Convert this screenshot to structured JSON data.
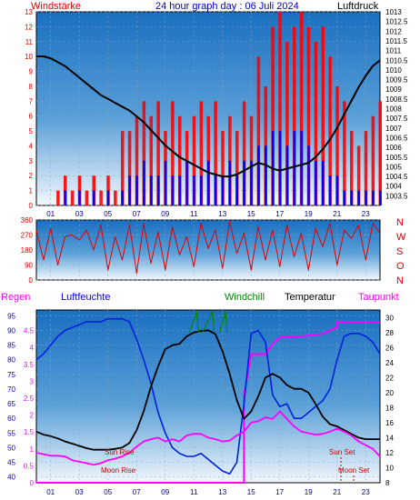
{
  "header": {
    "left": "Windstärke",
    "center": "24 hour graph day : 06 Juli 2024",
    "right": "Luftdruck"
  },
  "colors": {
    "wind": "#e00000",
    "wind_gust": "#ff0000",
    "wind_avg": "#0000ff",
    "pressure": "#000000",
    "direction": "#e00000",
    "humidity": "#0022dd",
    "temperature": "#000000",
    "dewpoint": "#ff00ff",
    "windchill": "#008800",
    "rain": "#ff00ff",
    "sky_top": "#1a6fc0",
    "sky_bottom": "#eef6fc",
    "grid": "#8aa8c8"
  },
  "chart_data": [
    {
      "type": "line",
      "title": "24 hour graph day : 06 Juli 2024",
      "left_label": "Windstärke",
      "right_label": "Luftdruck",
      "x_ticks": [
        "01",
        "03",
        "05",
        "07",
        "09",
        "11",
        "13",
        "15",
        "17",
        "19",
        "21",
        "23"
      ],
      "left_ticks": [
        "0",
        "1",
        "2",
        "3",
        "4",
        "5",
        "6",
        "7",
        "8",
        "9",
        "10",
        "11",
        "12",
        "13"
      ],
      "right_ticks": [
        "1003.5",
        "1004",
        "1004.5",
        "1005",
        "1005.5",
        "1006",
        "1006.5",
        "1007",
        "1007.5",
        "1008",
        "1008.5",
        "1009",
        "1009.5",
        "1010",
        "1010.5",
        "1011",
        "1011.5",
        "1012",
        "1012.5",
        "1013"
      ],
      "ylim_left": [
        0,
        13
      ],
      "ylim_right": [
        1003,
        1013
      ],
      "series": [
        {
          "name": "Luftdruck",
          "x": [
            0,
            0.5,
            1,
            1.5,
            2,
            2.5,
            3,
            3.5,
            4,
            4.5,
            5,
            5.5,
            6,
            6.5,
            7,
            7.5,
            8,
            8.5,
            9,
            9.5,
            10,
            10.5,
            11,
            11.5,
            12,
            12.5,
            13,
            13.5,
            14,
            14.5,
            15,
            15.5,
            16,
            16.5,
            17,
            17.5,
            18,
            18.5,
            19,
            19.5,
            20,
            20.5,
            21,
            21.5,
            22,
            22.5,
            23,
            23.5,
            24
          ],
          "values": [
            1010.7,
            1010.7,
            1010.6,
            1010.4,
            1010.2,
            1009.9,
            1009.6,
            1009.3,
            1009.0,
            1008.7,
            1008.5,
            1008.3,
            1008.1,
            1007.9,
            1007.6,
            1007.3,
            1006.9,
            1006.5,
            1006.1,
            1005.8,
            1005.5,
            1005.3,
            1005.1,
            1004.9,
            1004.7,
            1004.6,
            1004.5,
            1004.5,
            1004.6,
            1004.8,
            1005.0,
            1005.2,
            1005.1,
            1004.9,
            1004.8,
            1004.9,
            1005.0,
            1005.1,
            1005.2,
            1005.5,
            1005.9,
            1006.4,
            1007.0,
            1007.7,
            1008.4,
            1009.1,
            1009.7,
            1010.2,
            1010.5
          ]
        },
        {
          "name": "Windböen",
          "x": [
            0,
            0.5,
            1,
            1.5,
            2,
            2.5,
            3,
            3.5,
            4,
            4.5,
            5,
            5.5,
            6,
            6.5,
            7,
            7.5,
            8,
            8.5,
            9,
            9.5,
            10,
            10.5,
            11,
            11.5,
            12,
            12.5,
            13,
            13.5,
            14,
            14.5,
            15,
            15.5,
            16,
            16.5,
            17,
            17.5,
            18,
            18.5,
            19,
            19.5,
            20,
            20.5,
            21,
            21.5,
            22,
            22.5,
            23,
            23.5,
            24
          ],
          "values": [
            0,
            0,
            0,
            1,
            2,
            1,
            2,
            1,
            2,
            1,
            2,
            1,
            5,
            5,
            6,
            7,
            6,
            7,
            5,
            7,
            6,
            5,
            6,
            7,
            6,
            7,
            5,
            6,
            5,
            7,
            6,
            10,
            8,
            12,
            13,
            11,
            12,
            13,
            12,
            11,
            12,
            10,
            8,
            7,
            5,
            4,
            5,
            6,
            7
          ]
        },
        {
          "name": "Wind",
          "x": [
            0,
            0.5,
            1,
            1.5,
            2,
            2.5,
            3,
            3.5,
            4,
            4.5,
            5,
            5.5,
            6,
            6.5,
            7,
            7.5,
            8,
            8.5,
            9,
            9.5,
            10,
            10.5,
            11,
            11.5,
            12,
            12.5,
            13,
            13.5,
            14,
            14.5,
            15,
            15.5,
            16,
            16.5,
            17,
            17.5,
            18,
            18.5,
            19,
            19.5,
            20,
            20.5,
            21,
            21.5,
            22,
            22.5,
            23,
            23.5,
            24
          ],
          "values": [
            0,
            0,
            0,
            0,
            1,
            0,
            1,
            0,
            1,
            0,
            1,
            0,
            1,
            2,
            2,
            3,
            2,
            2,
            3,
            2,
            2,
            3,
            2,
            2,
            3,
            2,
            2,
            3,
            2,
            3,
            3,
            4,
            4,
            5,
            5,
            4,
            5,
            5,
            4,
            3,
            3,
            2,
            2,
            1,
            1,
            1,
            1,
            1,
            1
          ]
        }
      ]
    },
    {
      "type": "line",
      "title": "",
      "right_labels": [
        "N",
        "W",
        "S",
        "O",
        "N"
      ],
      "left_ticks": [
        "0",
        "90",
        "180",
        "270",
        "360"
      ],
      "ylim": [
        0,
        360
      ],
      "x_ticks": [
        "01",
        "03",
        "05",
        "07",
        "09",
        "11",
        "13",
        "15",
        "17",
        "19",
        "21",
        "23"
      ],
      "series": [
        {
          "name": "Windrichtung",
          "x": [
            0,
            0.5,
            1,
            1.5,
            2,
            2.5,
            3,
            3.5,
            4,
            4.5,
            5,
            5.5,
            6,
            6.5,
            7,
            7.5,
            8,
            8.5,
            9,
            9.5,
            10,
            10.5,
            11,
            11.5,
            12,
            12.5,
            13,
            13.5,
            14,
            14.5,
            15,
            15.5,
            16,
            16.5,
            17,
            17.5,
            18,
            18.5,
            19,
            19.5,
            20,
            20.5,
            21,
            21.5,
            22,
            22.5,
            23,
            23.5,
            24
          ],
          "values": [
            300,
            120,
            310,
            90,
            260,
            270,
            240,
            300,
            180,
            330,
            60,
            260,
            120,
            330,
            40,
            340,
            100,
            290,
            60,
            320,
            150,
            260,
            80,
            340,
            190,
            300,
            70,
            350,
            160,
            280,
            60,
            320,
            120,
            300,
            80,
            330,
            140,
            280,
            60,
            310,
            200,
            340,
            90,
            300,
            250,
            330,
            120,
            340,
            280
          ]
        }
      ]
    },
    {
      "type": "line",
      "title": "",
      "labels_top": [
        "Regen",
        "Luftfeuchte",
        "Windchill",
        "Temperatur",
        "Taupunkt"
      ],
      "rain_ticks": [
        "0",
        "0.5",
        "1",
        "1.5",
        "2",
        "2.5",
        "3",
        "3.5",
        "4",
        "4.5"
      ],
      "humidity_ticks": [
        "40",
        "45",
        "50",
        "55",
        "60",
        "65",
        "70",
        "75",
        "80",
        "85",
        "90",
        "95"
      ],
      "temp_ticks": [
        "8",
        "10",
        "12",
        "14",
        "16",
        "18",
        "20",
        "22",
        "24",
        "26",
        "28",
        "30"
      ],
      "x_ticks": [
        "01",
        "03",
        "05",
        "07",
        "09",
        "11",
        "13",
        "15",
        "17",
        "19",
        "21",
        "23"
      ],
      "annotations": [
        "Sun Rise",
        "Moon Rise",
        "Sun Set",
        "Moon Set"
      ],
      "ylim_humidity": [
        38,
        97
      ],
      "ylim_temp": [
        8,
        31
      ],
      "series": [
        {
          "name": "Luftfeuchte",
          "x": [
            0,
            0.5,
            1,
            1.5,
            2,
            2.5,
            3,
            3.5,
            4,
            4.5,
            5,
            5.5,
            6,
            6.5,
            7,
            7.5,
            8,
            8.5,
            9,
            9.5,
            10,
            10.5,
            11,
            11.5,
            12,
            12.5,
            13,
            13.5,
            14,
            14.5,
            15,
            15.5,
            16,
            16.5,
            17,
            17.5,
            18,
            18.5,
            19,
            19.5,
            20,
            20.5,
            21,
            21.5,
            22,
            22.5,
            23,
            23.5,
            24
          ],
          "values": [
            80,
            82,
            85,
            88,
            90,
            91,
            92,
            93,
            93,
            93,
            94,
            94,
            94,
            93,
            87,
            80,
            72,
            62,
            55,
            50,
            48,
            47,
            47,
            48,
            46,
            44,
            42,
            41,
            45,
            65,
            89,
            90,
            86,
            68,
            64,
            65,
            60,
            60,
            62,
            64,
            66,
            70,
            80,
            88,
            89,
            89,
            88,
            86,
            82
          ]
        },
        {
          "name": "Temperatur",
          "x": [
            0,
            0.5,
            1,
            1.5,
            2,
            2.5,
            3,
            3.5,
            4,
            4.5,
            5,
            5.5,
            6,
            6.5,
            7,
            7.5,
            8,
            8.5,
            9,
            9.5,
            10,
            10.5,
            11,
            11.5,
            12,
            12.5,
            13,
            13.5,
            14,
            14.5,
            15,
            15.5,
            16,
            16.5,
            17,
            17.5,
            18,
            18.5,
            19,
            19.5,
            20,
            20.5,
            21,
            21.5,
            22,
            22.5,
            23,
            23.5,
            24
          ],
          "values": [
            14.8,
            14.4,
            14.2,
            13.9,
            13.5,
            13.2,
            12.9,
            12.6,
            12.4,
            12.4,
            12.4,
            12.5,
            12.7,
            13.3,
            15.0,
            17.5,
            20.8,
            23.5,
            25.8,
            26.3,
            26.5,
            27.5,
            28.0,
            28.2,
            28.3,
            27.8,
            25.5,
            22.5,
            19.0,
            16.5,
            17.5,
            19.5,
            22.0,
            22.5,
            22.0,
            21.0,
            20.5,
            20.5,
            20.0,
            18.5,
            16.8,
            15.8,
            15.5,
            15.0,
            14.5,
            14.0,
            13.8,
            13.8,
            13.8
          ]
        },
        {
          "name": "Taupunkt",
          "x": [
            0,
            0.5,
            1,
            1.5,
            2,
            2.5,
            3,
            3.5,
            4,
            4.5,
            5,
            5.5,
            6,
            6.5,
            7,
            7.5,
            8,
            8.5,
            9,
            9.5,
            10,
            10.5,
            11,
            11.5,
            12,
            12.5,
            13,
            13.5,
            14,
            14.5,
            15,
            15.5,
            16,
            16.5,
            17,
            17.5,
            18,
            18.5,
            19,
            19.5,
            20,
            20.5,
            21,
            21.5,
            22,
            22.5,
            23,
            23.5,
            24
          ],
          "values": [
            12.0,
            11.8,
            11.6,
            11.6,
            11.5,
            11.0,
            10.8,
            10.6,
            10.4,
            10.6,
            11.0,
            11.2,
            11.5,
            12.0,
            12.8,
            13.5,
            13.8,
            14.0,
            13.5,
            13.8,
            13.5,
            14.3,
            14.5,
            14.5,
            14.0,
            13.8,
            13.5,
            13.6,
            14.3,
            14.8,
            16.0,
            16.2,
            16.7,
            16.5,
            17.5,
            16.5,
            15.5,
            14.8,
            14.6,
            14.4,
            14.5,
            14.8,
            15.2,
            14.8,
            14.3,
            13.5,
            13.0,
            12.5,
            11.5
          ]
        },
        {
          "name": "Windchill",
          "x": [
            10.7,
            11.2,
            11.6,
            12.3,
            12.8,
            13.2
          ],
          "values": [
            28.0,
            30.8,
            28.0,
            30.8,
            28.0,
            30.8
          ]
        },
        {
          "name": "Regen",
          "x": [
            0,
            14.5,
            14.5,
            15.0,
            16.0,
            16.5,
            17.0,
            18.0,
            20.0,
            21.0,
            21.0,
            24.0
          ],
          "values": [
            0,
            0,
            2.6,
            3.8,
            3.8,
            4.1,
            4.3,
            4.3,
            4.4,
            4.6,
            4.75,
            4.75
          ]
        }
      ]
    }
  ]
}
